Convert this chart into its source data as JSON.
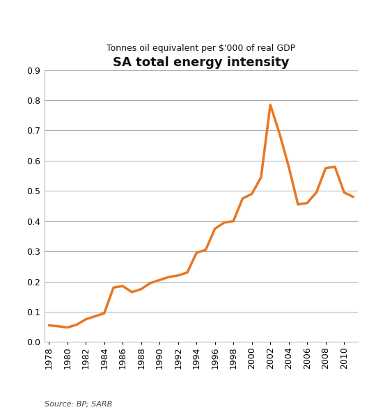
{
  "title": "SA total energy intensity",
  "subtitle": "Tonnes oil equivalent per $'000 of real GDP",
  "source_text": "Source: BP; SARB",
  "line_color": "#E87722",
  "line_width": 2.5,
  "background_color": "#ffffff",
  "ylim": [
    0,
    0.9
  ],
  "yticks": [
    0,
    0.1,
    0.2,
    0.3,
    0.4,
    0.5,
    0.6,
    0.7,
    0.8,
    0.9
  ],
  "xtick_step": 2,
  "years": [
    1978,
    1979,
    1980,
    1981,
    1982,
    1983,
    1984,
    1985,
    1986,
    1987,
    1988,
    1989,
    1990,
    1991,
    1992,
    1993,
    1994,
    1995,
    1996,
    1997,
    1998,
    1999,
    2000,
    2001,
    2002,
    2003,
    2004,
    2005,
    2006,
    2007,
    2008,
    2009,
    2010,
    2011
  ],
  "values": [
    0.055,
    0.052,
    0.048,
    0.057,
    0.075,
    0.085,
    0.095,
    0.18,
    0.185,
    0.165,
    0.175,
    0.195,
    0.205,
    0.215,
    0.22,
    0.23,
    0.295,
    0.305,
    0.375,
    0.395,
    0.4,
    0.475,
    0.49,
    0.545,
    0.785,
    0.69,
    0.58,
    0.455,
    0.46,
    0.495,
    0.575,
    0.58,
    0.495,
    0.48
  ],
  "grid_color": "#aaaaaa",
  "tick_label_fontsize": 9,
  "title_fontsize": 13,
  "subtitle_fontsize": 9,
  "source_fontsize": 8
}
